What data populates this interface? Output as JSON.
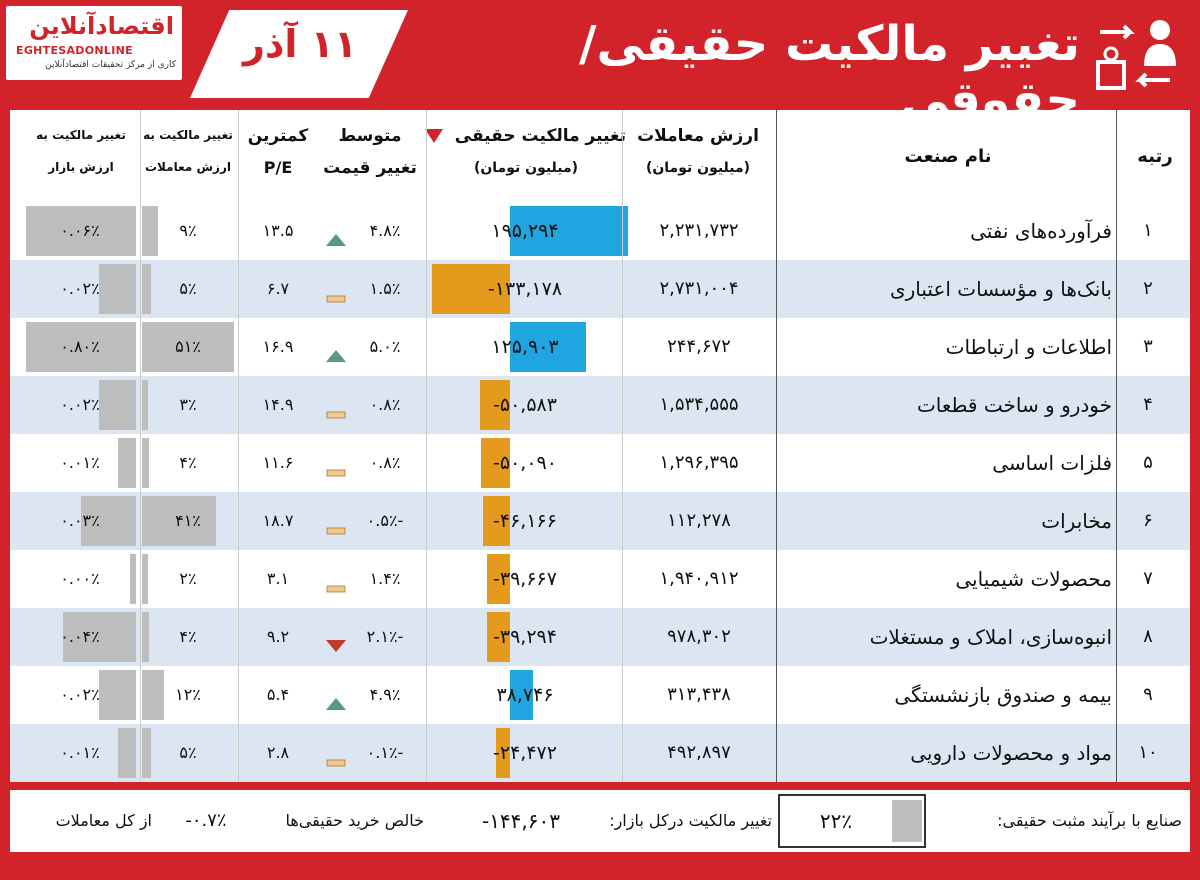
{
  "header": {
    "logo_name": "اقتصادآنلاین",
    "logo_latin": "EGHTESADONLINE",
    "logo_tagline": "کاری از مرکز تحقیقات اقتصادآنلاین",
    "date": "۱۱ آذر",
    "title": "تغییر مالکیت حقیقی/حقوقی"
  },
  "table": {
    "headers": {
      "rank": "رتبه",
      "industry": "نام صنعت",
      "trade_value": "ارزش معاملات",
      "trade_value_unit": "(میلیون تومان)",
      "real_change": "تغییر مالکیت حقیقی",
      "real_change_unit": "(میلیون تومان)",
      "avg_price": "متوسط",
      "avg_price_2": "تغییر قیمت",
      "pe": "کمترین",
      "pe_2": "P/E",
      "ratio_trade": "تغییر مالکیت به",
      "ratio_trade_2": "ارزش معاملات",
      "ratio_market": "تغییر مالکیت به",
      "ratio_market_2": "ارزش بازار"
    },
    "rows": [
      {
        "rank": "۱",
        "industry": "فرآورده‌های نفتی",
        "trade_value": "۲,۲۳۱,۷۳۲",
        "real_change": "۱۹۵,۲۹۴",
        "real_change_num": 195294,
        "avg_price": "۴.۸٪",
        "trend": "up",
        "pe": "۱۳.۵",
        "ratio_trade": "۹٪",
        "ratio_trade_num": 9,
        "ratio_market": "۰.۰۶٪",
        "ratio_market_num": 0.06
      },
      {
        "rank": "۲",
        "industry": "بانک‌ها و مؤسسات اعتباری",
        "trade_value": "۲,۷۳۱,۰۰۴",
        "real_change": "۱۳۳,۱۷۸-",
        "real_change_num": -133178,
        "avg_price": "۱.۵٪",
        "trend": "flat",
        "pe": "۶.۷",
        "ratio_trade": "۵٪",
        "ratio_trade_num": 5,
        "ratio_market": "۰.۰۲٪",
        "ratio_market_num": 0.02
      },
      {
        "rank": "۳",
        "industry": "اطلاعات و ارتباطات",
        "trade_value": "۲۴۴,۶۷۲",
        "real_change": "۱۲۵,۹۰۳",
        "real_change_num": 125903,
        "avg_price": "۵.۰٪",
        "trend": "up",
        "pe": "۱۶.۹",
        "ratio_trade": "۵۱٪",
        "ratio_trade_num": 51,
        "ratio_market": "۰.۸۰٪",
        "ratio_market_num": 0.8
      },
      {
        "rank": "۴",
        "industry": "خودرو و ساخت قطعات",
        "trade_value": "۱,۵۳۴,۵۵۵",
        "real_change": "۵۰,۵۸۳-",
        "real_change_num": -50583,
        "avg_price": "۰.۸٪",
        "trend": "flat",
        "pe": "۱۴.۹",
        "ratio_trade": "۳٪",
        "ratio_trade_num": 3,
        "ratio_market": "۰.۰۲٪",
        "ratio_market_num": 0.02
      },
      {
        "rank": "۵",
        "industry": "فلزات اساسی",
        "trade_value": "۱,۲۹۶,۳۹۵",
        "real_change": "۵۰,۰۹۰-",
        "real_change_num": -50090,
        "avg_price": "۰.۸٪",
        "trend": "flat",
        "pe": "۱۱.۶",
        "ratio_trade": "۴٪",
        "ratio_trade_num": 4,
        "ratio_market": "۰.۰۱٪",
        "ratio_market_num": 0.01
      },
      {
        "rank": "۶",
        "industry": "مخابرات",
        "trade_value": "۱۱۲,۲۷۸",
        "real_change": "۴۶,۱۶۶-",
        "real_change_num": -46166,
        "avg_price": "-۰.۵٪",
        "trend": "flat",
        "pe": "۱۸.۷",
        "ratio_trade": "۴۱٪",
        "ratio_trade_num": 41,
        "ratio_market": "۰.۰۳٪",
        "ratio_market_num": 0.03
      },
      {
        "rank": "۷",
        "industry": "محصولات شیمیایی",
        "trade_value": "۱,۹۴۰,۹۱۲",
        "real_change": "۳۹,۶۶۷-",
        "real_change_num": -39667,
        "avg_price": "۱.۴٪",
        "trend": "flat",
        "pe": "۳.۱",
        "ratio_trade": "۲٪",
        "ratio_trade_num": 2,
        "ratio_market": "۰.۰۰٪",
        "ratio_market_num": 0.0
      },
      {
        "rank": "۸",
        "industry": "انبوه‌سازی، املاک و مستغلات",
        "trade_value": "۹۷۸,۳۰۲",
        "real_change": "۳۹,۲۹۴-",
        "real_change_num": -39294,
        "avg_price": "-۲.۱٪",
        "trend": "down",
        "pe": "۹.۲",
        "ratio_trade": "۴٪",
        "ratio_trade_num": 4,
        "ratio_market": "۰.۰۴٪",
        "ratio_market_num": 0.04
      },
      {
        "rank": "۹",
        "industry": "بیمه و صندوق بازنشستگی",
        "trade_value": "۳۱۳,۴۳۸",
        "real_change": "۳۸,۷۴۶",
        "real_change_num": 38746,
        "avg_price": "۴.۹٪",
        "trend": "up",
        "pe": "۵.۴",
        "ratio_trade": "۱۲٪",
        "ratio_trade_num": 12,
        "ratio_market": "۰.۰۲٪",
        "ratio_market_num": 0.02
      },
      {
        "rank": "۱۰",
        "industry": "مواد و محصولات دارویی",
        "trade_value": "۴۹۲,۸۹۷",
        "real_change": "۲۴,۴۷۲-",
        "real_change_num": -24472,
        "avg_price": "-۰.۱٪",
        "trend": "flat",
        "pe": "۲.۸",
        "ratio_trade": "۵٪",
        "ratio_trade_num": 5,
        "ratio_market": "۰.۰۱٪",
        "ratio_market_num": 0.01
      }
    ]
  },
  "footer": {
    "positive_label": "صنایع با برآیند مثبت حقیقی:",
    "positive_value": "۲۲٪",
    "market_label": "تغییر مالکیت درکل بازار:",
    "market_value": "۱۴۴,۶۰۳-",
    "net_label": "خالص خرید حقیقی‌ها",
    "net_value": "۰.۷٪-",
    "net_suffix": "از کل معاملات"
  },
  "colors": {
    "brand_red": "#d2232a",
    "positive_bar": "#1fa6e0",
    "negative_bar": "#e39a1d",
    "ratio_bar": "#bdbdbd",
    "up_triangle": "#5a9a7a",
    "down_triangle": "#c0392b",
    "flat_marker": "#f1c88d",
    "alt_row": "#dbe6f2"
  },
  "icons": {
    "title_icon": "ownership-transfer-icon",
    "sort_icon": "sort-desc-triangle-icon"
  },
  "chart_data": {
    "type": "table",
    "columns": [
      "رتبه",
      "نام صنعت",
      "ارزش معاملات (میلیون تومان)",
      "تغییر مالکیت حقیقی (میلیون تومان)",
      "متوسط تغییر قیمت",
      "کمترین P/E",
      "تغییر مالکیت به ارزش معاملات",
      "تغییر مالکیت به ارزش بازار"
    ],
    "categories": [
      "فرآورده‌های نفتی",
      "بانک‌ها و مؤسسات اعتباری",
      "اطلاعات و ارتباطات",
      "خودرو و ساخت قطعات",
      "فلزات اساسی",
      "مخابرات",
      "محصولات شیمیایی",
      "انبوه‌سازی، املاک و مستغلات",
      "بیمه و صندوق بازنشستگی",
      "مواد و محصولات دارویی"
    ],
    "series": [
      {
        "name": "ارزش معاملات",
        "values": [
          2231732,
          2731004,
          244672,
          1534555,
          1296395,
          112278,
          1940912,
          978302,
          313438,
          492897
        ]
      },
      {
        "name": "تغییر مالکیت حقیقی",
        "values": [
          195294,
          -133178,
          125903,
          -50583,
          -50090,
          -46166,
          -39667,
          -39294,
          38746,
          -24472
        ]
      },
      {
        "name": "متوسط تغییر قیمت",
        "values": [
          4.8,
          1.5,
          5.0,
          0.8,
          0.8,
          -0.5,
          1.4,
          -2.1,
          4.9,
          -0.1
        ]
      },
      {
        "name": "کمترین P/E",
        "values": [
          13.5,
          6.7,
          16.9,
          14.9,
          11.6,
          18.7,
          3.1,
          9.2,
          5.4,
          2.8
        ]
      },
      {
        "name": "تغییر مالکیت به ارزش معاملات",
        "values": [
          9,
          5,
          51,
          3,
          4,
          41,
          2,
          4,
          12,
          5
        ]
      },
      {
        "name": "تغییر مالکیت به ارزش بازار",
        "values": [
          0.06,
          0.02,
          0.8,
          0.02,
          0.01,
          0.03,
          0.0,
          0.04,
          0.02,
          0.01
        ]
      }
    ]
  }
}
